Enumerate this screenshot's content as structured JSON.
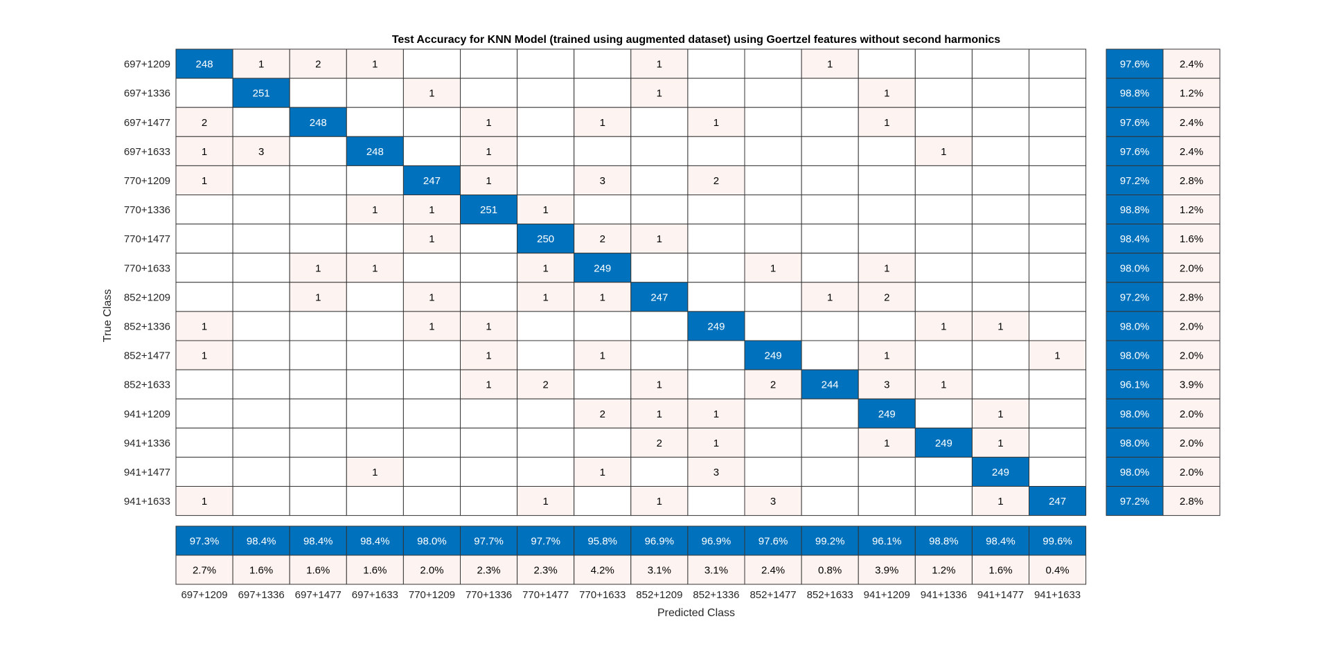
{
  "chart_data": {
    "type": "heatmap",
    "title": "Test Accuracy for KNN Model (trained using augmented dataset) using Goertzel features without second harmonics",
    "xlabel": "Predicted Class",
    "ylabel": "True Class",
    "classes": [
      "697+1209",
      "697+1336",
      "697+1477",
      "697+1633",
      "770+1209",
      "770+1336",
      "770+1477",
      "770+1633",
      "852+1209",
      "852+1336",
      "852+1477",
      "852+1633",
      "941+1209",
      "941+1336",
      "941+1477",
      "941+1633"
    ],
    "matrix": [
      [
        248,
        1,
        2,
        1,
        0,
        0,
        0,
        0,
        1,
        0,
        0,
        1,
        0,
        0,
        0,
        0
      ],
      [
        0,
        251,
        0,
        0,
        1,
        0,
        0,
        0,
        1,
        0,
        0,
        0,
        1,
        0,
        0,
        0
      ],
      [
        2,
        0,
        248,
        0,
        0,
        1,
        0,
        1,
        0,
        1,
        0,
        0,
        1,
        0,
        0,
        0
      ],
      [
        1,
        3,
        0,
        248,
        0,
        1,
        0,
        0,
        0,
        0,
        0,
        0,
        0,
        1,
        0,
        0
      ],
      [
        1,
        0,
        0,
        0,
        247,
        1,
        0,
        3,
        0,
        2,
        0,
        0,
        0,
        0,
        0,
        0
      ],
      [
        0,
        0,
        0,
        1,
        1,
        251,
        1,
        0,
        0,
        0,
        0,
        0,
        0,
        0,
        0,
        0
      ],
      [
        0,
        0,
        0,
        0,
        1,
        0,
        250,
        2,
        1,
        0,
        0,
        0,
        0,
        0,
        0,
        0
      ],
      [
        0,
        0,
        1,
        1,
        0,
        0,
        1,
        249,
        0,
        0,
        1,
        0,
        1,
        0,
        0,
        0
      ],
      [
        0,
        0,
        1,
        0,
        1,
        0,
        1,
        1,
        247,
        0,
        0,
        1,
        2,
        0,
        0,
        0
      ],
      [
        1,
        0,
        0,
        0,
        1,
        1,
        0,
        0,
        0,
        249,
        0,
        0,
        0,
        1,
        1,
        0
      ],
      [
        1,
        0,
        0,
        0,
        0,
        1,
        0,
        1,
        0,
        0,
        249,
        0,
        1,
        0,
        0,
        1
      ],
      [
        0,
        0,
        0,
        0,
        0,
        1,
        2,
        0,
        1,
        0,
        2,
        244,
        3,
        1,
        0,
        0
      ],
      [
        0,
        0,
        0,
        0,
        0,
        0,
        0,
        2,
        1,
        1,
        0,
        0,
        249,
        0,
        1,
        0
      ],
      [
        0,
        0,
        0,
        0,
        0,
        0,
        0,
        0,
        2,
        1,
        0,
        0,
        1,
        249,
        1,
        0
      ],
      [
        0,
        0,
        0,
        1,
        0,
        0,
        0,
        1,
        0,
        3,
        0,
        0,
        0,
        0,
        249,
        0
      ],
      [
        1,
        0,
        0,
        0,
        0,
        0,
        1,
        0,
        1,
        0,
        3,
        0,
        0,
        0,
        1,
        247
      ]
    ],
    "row_summary": {
      "correct": [
        "97.6%",
        "98.8%",
        "97.6%",
        "97.6%",
        "97.2%",
        "98.8%",
        "98.4%",
        "98.0%",
        "97.2%",
        "98.0%",
        "98.0%",
        "96.1%",
        "98.0%",
        "98.0%",
        "98.0%",
        "97.2%"
      ],
      "incorrect": [
        "2.4%",
        "1.2%",
        "2.4%",
        "2.4%",
        "2.8%",
        "1.2%",
        "1.6%",
        "2.0%",
        "2.8%",
        "2.0%",
        "2.0%",
        "3.9%",
        "2.0%",
        "2.0%",
        "2.0%",
        "2.8%"
      ]
    },
    "column_summary": {
      "correct": [
        "97.3%",
        "98.4%",
        "98.4%",
        "98.4%",
        "98.0%",
        "97.7%",
        "97.7%",
        "95.8%",
        "96.9%",
        "96.9%",
        "97.6%",
        "99.2%",
        "96.1%",
        "98.8%",
        "98.4%",
        "99.6%"
      ],
      "incorrect": [
        "2.7%",
        "1.6%",
        "1.6%",
        "1.6%",
        "2.0%",
        "2.3%",
        "2.3%",
        "4.2%",
        "3.1%",
        "3.1%",
        "2.4%",
        "0.8%",
        "3.9%",
        "1.2%",
        "1.6%",
        "0.4%"
      ]
    },
    "colors": {
      "diagonal": "#0072BD",
      "off_diagonal": "#FDF3F0",
      "empty": "#FFFFFF",
      "grid": "#333333",
      "text_dark": "#000000",
      "text_light": "#FFFFFF",
      "label_text": "#262626"
    }
  }
}
